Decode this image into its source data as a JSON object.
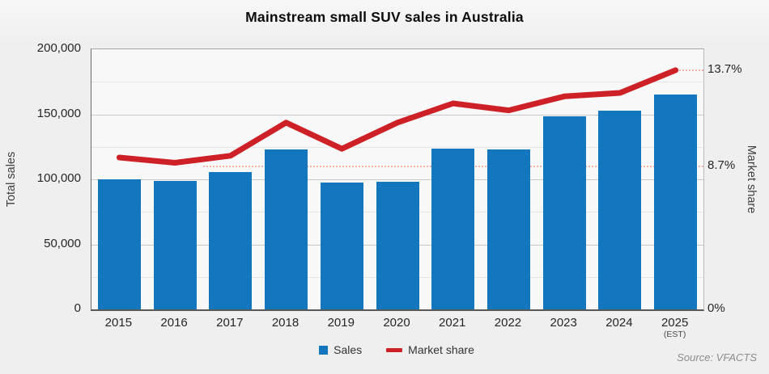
{
  "title": "Mainstream small SUV sales in Australia",
  "source_note": "Source: VFACTS",
  "colors": {
    "bar": "#1476bc",
    "line": "#ce2127",
    "callout_dotted": "#f2b3a7",
    "background": "#efefef",
    "plot_background": "#f8f8f8"
  },
  "chart_data": {
    "type": "combo-bar-line",
    "title": "Mainstream small SUV sales in Australia",
    "categories": [
      "2015",
      "2016",
      "2017",
      "2018",
      "2019",
      "2020",
      "2021",
      "2022",
      "2023",
      "2024",
      "2025"
    ],
    "category_note": {
      "category": "2025",
      "label": "(EST)"
    },
    "series": [
      {
        "name": "Sales",
        "type": "bar",
        "axis": "left",
        "color": "#1476bc",
        "values": [
          100300,
          98600,
          105400,
          123200,
          97800,
          97900,
          123600,
          123000,
          148400,
          152500,
          165400
        ]
      },
      {
        "name": "Market share",
        "type": "line",
        "axis": "right",
        "color": "#ce2127",
        "unit": "%",
        "values": [
          8.7,
          8.4,
          8.8,
          10.7,
          9.2,
          10.7,
          11.8,
          11.4,
          12.2,
          12.4,
          13.7
        ]
      }
    ],
    "left_axis": {
      "label": "Total sales",
      "min": 0,
      "max": 200000,
      "tick_values": [
        0,
        50000,
        100000,
        150000,
        200000
      ],
      "tick_labels": [
        "0",
        "50,000",
        "100,000",
        "150,000",
        "200,000"
      ],
      "minor_tick_step": 25000
    },
    "right_axis": {
      "label": "Market share",
      "callouts": [
        {
          "label": "13.7%",
          "value": 13.7
        },
        {
          "label": "8.7%",
          "value": 8.7
        },
        {
          "label": "0%",
          "value": 0
        }
      ]
    },
    "legend": {
      "position": "bottom",
      "items": [
        "Sales",
        "Market share"
      ]
    },
    "grid": "on"
  }
}
